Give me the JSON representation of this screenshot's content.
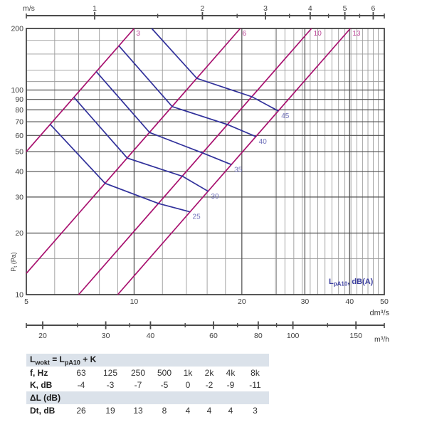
{
  "chart_data": {
    "type": "line",
    "title": "",
    "x_axis": {
      "unit": "dm³/s",
      "ticks": [
        5,
        10,
        20,
        30,
        40,
        50
      ],
      "scale": "log",
      "range": [
        5,
        50
      ]
    },
    "y_axis": {
      "title_main": "P",
      "title_sub": "t",
      "title_rest": " (Pa)",
      "ticks": [
        10,
        20,
        30,
        40,
        50,
        60,
        70,
        80,
        90,
        100,
        200
      ],
      "scale": "log",
      "range": [
        10,
        200
      ]
    },
    "grid": {
      "x_major": [
        10,
        20,
        30,
        40
      ],
      "x_minor_flow": [
        6,
        7,
        8,
        9,
        12,
        14,
        16,
        18,
        25
      ],
      "x_minor_velocity": [
        3.2,
        3.4,
        3.6,
        3.8,
        4,
        4.2,
        4.4,
        4.6,
        4.8,
        5,
        5.2,
        5.4,
        5.6,
        5.8,
        6,
        6.2
      ],
      "y_major": [
        20,
        30,
        40,
        50,
        60,
        70,
        80,
        90,
        100
      ],
      "y_minor": [
        15,
        110,
        125,
        150,
        175
      ]
    },
    "top_ruler": {
      "unit": "m/s",
      "major": [
        1,
        2,
        3,
        4,
        5,
        6
      ],
      "minor": [
        1.5,
        2.5,
        3.5,
        4.5,
        5.5
      ],
      "flow_per_velocity": 7.76
    },
    "bottom_ruler": {
      "unit": "m³/h",
      "major": [
        20,
        30,
        40,
        60,
        80,
        100,
        150
      ],
      "minor": [
        25,
        35,
        50,
        70,
        90,
        125
      ],
      "flow_factor": 3.6
    },
    "position_lines": [
      {
        "label": "3",
        "points": [
          [
            5,
            50
          ],
          [
            10,
            200
          ]
        ]
      },
      {
        "label": "6",
        "points": [
          [
            5,
            12.7
          ],
          [
            19.8,
            200
          ]
        ]
      },
      {
        "label": "10",
        "points": [
          [
            7,
            10
          ],
          [
            31.3,
            200
          ]
        ]
      },
      {
        "label": "13",
        "points": [
          [
            9,
            10
          ],
          [
            40.2,
            200
          ]
        ]
      }
    ],
    "sound_curves": [
      {
        "label": "25",
        "points": [
          [
            5.83,
            68
          ],
          [
            8.3,
            35
          ],
          [
            11.7,
            27.9
          ],
          [
            14.3,
            25.4
          ]
        ]
      },
      {
        "label": "30",
        "points": [
          [
            6.79,
            92.2
          ],
          [
            9.57,
            46.5
          ],
          [
            13.65,
            37.9
          ],
          [
            16.1,
            32
          ]
        ]
      },
      {
        "label": "35",
        "points": [
          [
            7.84,
            123
          ],
          [
            11.05,
            62
          ],
          [
            15.65,
            49
          ],
          [
            18.7,
            43.2
          ]
        ]
      },
      {
        "label": "40",
        "points": [
          [
            9.07,
            164.5
          ],
          [
            12.78,
            83
          ],
          [
            18.25,
            67.8
          ],
          [
            21.9,
            59.2
          ]
        ]
      },
      {
        "label": "45",
        "points": [
          [
            11.2,
            200
          ],
          [
            14.98,
            114
          ],
          [
            21.35,
            92.7
          ],
          [
            25.3,
            79
          ]
        ]
      }
    ],
    "legend": {
      "main": "L",
      "sub": "pA10",
      "rest": ", dB(A)"
    },
    "colors": {
      "magenta": "#a8116f",
      "magenta_label": "#bb4596",
      "blue_curve": "#31319b",
      "blue_label": "#6f71ba",
      "legend_blue": "#3c3f9f",
      "grid_major": "#4d4d4d",
      "grid_minor": "#9b9b9b",
      "border": "#3a3a3a",
      "axis_text": "#3f3f3f",
      "ruler": "#4a4a4a"
    }
  },
  "table": {
    "formula": {
      "p1": "L",
      "sub1": "wokt",
      "p2": " = L",
      "sub2": "pA10",
      "p3": " + K"
    },
    "freq_row": {
      "label": "f, Hz",
      "values": [
        "63",
        "125",
        "250",
        "500",
        "1k",
        "2k",
        "4k",
        "8k"
      ]
    },
    "k_row": {
      "label": "K, dB",
      "values": [
        "-4",
        "-3",
        "-7",
        "-5",
        "0",
        "-2",
        "-9",
        "-11"
      ]
    },
    "dl_header": "ΔL (dB)",
    "dt_row": {
      "label": "Dt, dB",
      "values": [
        "26",
        "19",
        "13",
        "8",
        "4",
        "4",
        "4",
        "3"
      ]
    }
  }
}
